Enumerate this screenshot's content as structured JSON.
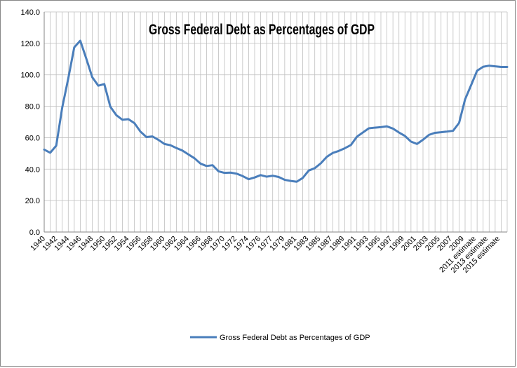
{
  "chart_data": {
    "type": "line",
    "title": "Gross Federal Debt as Percentages of GDP",
    "xlabel": "",
    "ylabel": "",
    "ylim": [
      0,
      140
    ],
    "yticks": [
      "0.0",
      "20.0",
      "40.0",
      "60.0",
      "80.0",
      "100.0",
      "120.0",
      "140.0"
    ],
    "grid": "on",
    "legend_position": "bottom",
    "line_color": "#4a7ebb",
    "x_tick_labels": [
      "1940",
      "1942",
      "1944",
      "1946",
      "1948",
      "1950",
      "1952",
      "1954",
      "1956",
      "1958",
      "1960",
      "1962",
      "1964",
      "1966",
      "1968",
      "1970",
      "1972",
      "1974",
      "1976",
      "1977",
      "1979",
      "1981",
      "1983",
      "1985",
      "1987",
      "1989",
      "1991",
      "1993",
      "1995",
      "1997",
      "1999",
      "2001",
      "2003",
      "2005",
      "2007",
      "2009",
      "2011 estimate",
      "2013 estimate",
      "2015 estimate"
    ],
    "series": [
      {
        "name": "Gross Federal Debt as Percentages of GDP",
        "values": [
          52.4,
          50.4,
          54.9,
          79.2,
          97.6,
          117.5,
          121.7,
          110.3,
          98.4,
          93.1,
          94.1,
          79.7,
          74.3,
          71.4,
          71.8,
          69.3,
          63.9,
          60.4,
          60.8,
          58.6,
          56.0,
          55.2,
          53.4,
          51.8,
          49.3,
          46.9,
          43.5,
          42.0,
          42.5,
          38.6,
          37.6,
          37.8,
          37.1,
          35.6,
          33.6,
          34.7,
          36.2,
          35.2,
          35.8,
          35.0,
          33.2,
          32.5,
          32.0,
          34.4,
          39.1,
          40.6,
          43.7,
          47.8,
          50.3,
          51.6,
          53.3,
          55.3,
          60.6,
          63.3,
          66.0,
          66.4,
          66.7,
          67.2,
          65.8,
          63.3,
          61.1,
          57.5,
          56.0,
          58.7,
          61.8,
          63.1,
          63.5,
          63.9,
          64.4,
          69.4,
          84.4,
          93.4,
          102.6,
          105.1,
          105.8,
          105.4,
          105.0,
          105.0
        ]
      }
    ]
  }
}
